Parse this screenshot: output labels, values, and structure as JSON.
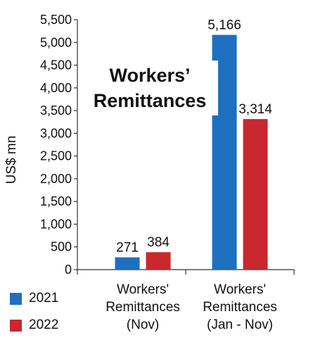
{
  "chart_data": {
    "type": "bar",
    "title_lines": [
      "Workers’",
      "Remittances"
    ],
    "ylabel": "US$ mn",
    "ylim": [
      0,
      5500
    ],
    "yticks": [
      0,
      500,
      1000,
      1500,
      2000,
      2500,
      3000,
      3500,
      4000,
      4500,
      5000,
      5500
    ],
    "ytick_labels": [
      "0",
      "500",
      "1,000",
      "1,500",
      "2,000",
      "2,500",
      "3,000",
      "3,500",
      "4,000",
      "4,500",
      "5,000",
      "5,500"
    ],
    "categories": [
      [
        "Workers'",
        "Remittances",
        "(Nov)"
      ],
      [
        "Workers'",
        "Remittances",
        "(Jan - Nov)"
      ]
    ],
    "series": [
      {
        "name": "2021",
        "color": "#1E6FC0",
        "values": [
          271,
          5166
        ],
        "labels": [
          "271",
          "5,166"
        ]
      },
      {
        "name": "2022",
        "color": "#C8282E",
        "values": [
          384,
          3314
        ],
        "labels": [
          "384",
          "3,314"
        ]
      }
    ],
    "grid": false,
    "legend_position": "bottom-left"
  }
}
